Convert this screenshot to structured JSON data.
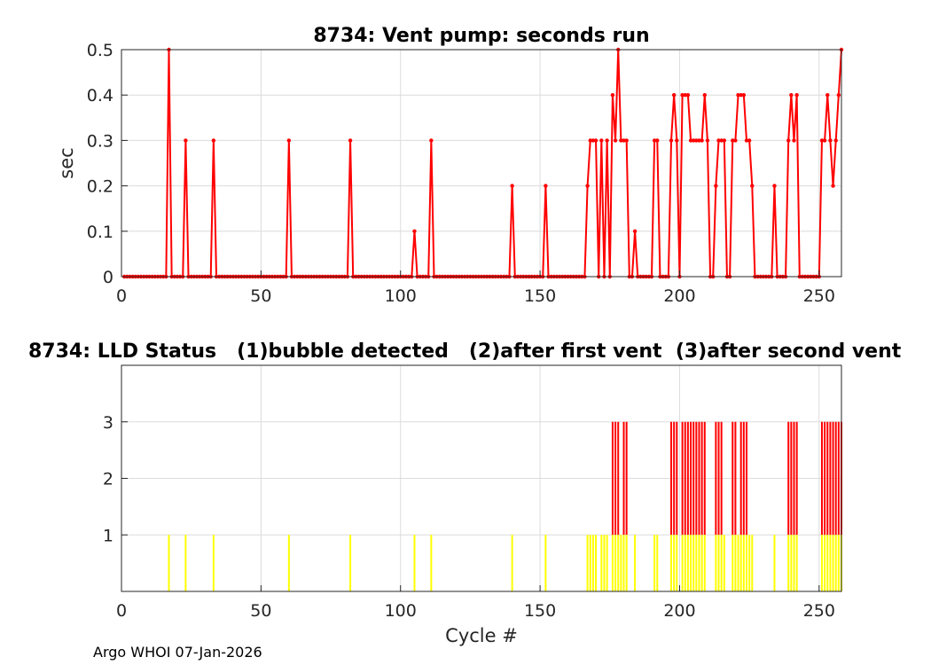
{
  "footer": "Argo WHOI 07-Jan-2026",
  "chart_data": [
    {
      "type": "line",
      "title": "8734: Vent pump: seconds run",
      "xlabel": "",
      "ylabel": "sec",
      "xlim": [
        0,
        258
      ],
      "ylim": [
        0,
        0.5
      ],
      "xticks": [
        0,
        50,
        100,
        150,
        200,
        250
      ],
      "yticks": [
        0,
        0.1,
        0.2,
        0.3,
        0.4,
        0.5
      ],
      "xtick_labels": [
        "0",
        "50",
        "100",
        "150",
        "200",
        "250"
      ],
      "ytick_labels": [
        "0",
        "0.1",
        "0.2",
        "0.3",
        "0.4",
        "0.5"
      ],
      "grid": true,
      "color": "#ff0000",
      "style": "stem",
      "x_start": 1,
      "baseline_value": 0,
      "nonzero_points": [
        [
          17,
          0.5
        ],
        [
          23,
          0.3
        ],
        [
          33,
          0.3
        ],
        [
          60,
          0.3
        ],
        [
          82,
          0.3
        ],
        [
          105,
          0.1
        ],
        [
          111,
          0.3
        ],
        [
          140,
          0.2
        ],
        [
          152,
          0.2
        ],
        [
          167,
          0.2
        ],
        [
          168,
          0.3
        ],
        [
          169,
          0.3
        ],
        [
          170,
          0.3
        ],
        [
          172,
          0.3
        ],
        [
          174,
          0.3
        ],
        [
          176,
          0.4
        ],
        [
          177,
          0.3
        ],
        [
          178,
          0.5
        ],
        [
          179,
          0.3
        ],
        [
          180,
          0.3
        ],
        [
          181,
          0.3
        ],
        [
          184,
          0.1
        ],
        [
          191,
          0.3
        ],
        [
          192,
          0.3
        ],
        [
          197,
          0.3
        ],
        [
          198,
          0.4
        ],
        [
          199,
          0.3
        ],
        [
          201,
          0.4
        ],
        [
          202,
          0.4
        ],
        [
          203,
          0.4
        ],
        [
          204,
          0.3
        ],
        [
          205,
          0.3
        ],
        [
          206,
          0.3
        ],
        [
          207,
          0.3
        ],
        [
          208,
          0.3
        ],
        [
          209,
          0.4
        ],
        [
          210,
          0.3
        ],
        [
          213,
          0.2
        ],
        [
          214,
          0.3
        ],
        [
          215,
          0.3
        ],
        [
          216,
          0.3
        ],
        [
          219,
          0.3
        ],
        [
          220,
          0.3
        ],
        [
          221,
          0.4
        ],
        [
          222,
          0.4
        ],
        [
          223,
          0.4
        ],
        [
          224,
          0.3
        ],
        [
          225,
          0.3
        ],
        [
          226,
          0.2
        ],
        [
          234,
          0.2
        ],
        [
          239,
          0.3
        ],
        [
          240,
          0.4
        ],
        [
          241,
          0.3
        ],
        [
          242,
          0.4
        ],
        [
          251,
          0.3
        ],
        [
          252,
          0.3
        ],
        [
          253,
          0.4
        ],
        [
          254,
          0.3
        ],
        [
          255,
          0.2
        ],
        [
          256,
          0.3
        ],
        [
          257,
          0.4
        ],
        [
          258,
          0.5
        ]
      ]
    },
    {
      "type": "bar",
      "title": "8734: LLD Status   (1)bubble detected   (2)after first vent  (3)after second vent",
      "xlabel": "Cycle #",
      "ylabel": "",
      "xlim": [
        0,
        258
      ],
      "ylim": [
        0,
        4
      ],
      "xticks": [
        0,
        50,
        100,
        150,
        200,
        250
      ],
      "yticks": [
        1,
        2,
        3
      ],
      "xtick_labels": [
        "0",
        "50",
        "100",
        "150",
        "200",
        "250"
      ],
      "ytick_labels": [
        "1",
        "2",
        "3"
      ],
      "grid": true,
      "status_colors": {
        "bubble": "#ffff00",
        "vented": "#ff0000"
      },
      "bubble_detected_cycles": [
        17,
        23,
        33,
        60,
        82,
        105,
        111,
        140,
        152,
        167,
        168,
        169,
        170,
        172,
        173,
        174,
        176,
        177,
        178,
        179,
        180,
        181,
        184,
        191,
        192,
        197,
        198,
        199,
        201,
        202,
        203,
        204,
        205,
        206,
        207,
        208,
        209,
        213,
        214,
        215,
        216,
        219,
        220,
        221,
        222,
        223,
        224,
        225,
        226,
        234,
        239,
        240,
        241,
        242,
        251,
        252,
        253,
        254,
        255,
        256,
        257,
        258
      ],
      "after_second_vent_cycles": [
        176,
        177,
        178,
        180,
        181,
        197,
        198,
        199,
        201,
        202,
        203,
        204,
        205,
        206,
        207,
        208,
        209,
        213,
        214,
        215,
        219,
        220,
        222,
        223,
        224,
        239,
        240,
        241,
        242,
        251,
        252,
        253,
        254,
        255,
        256,
        257,
        258
      ]
    }
  ]
}
